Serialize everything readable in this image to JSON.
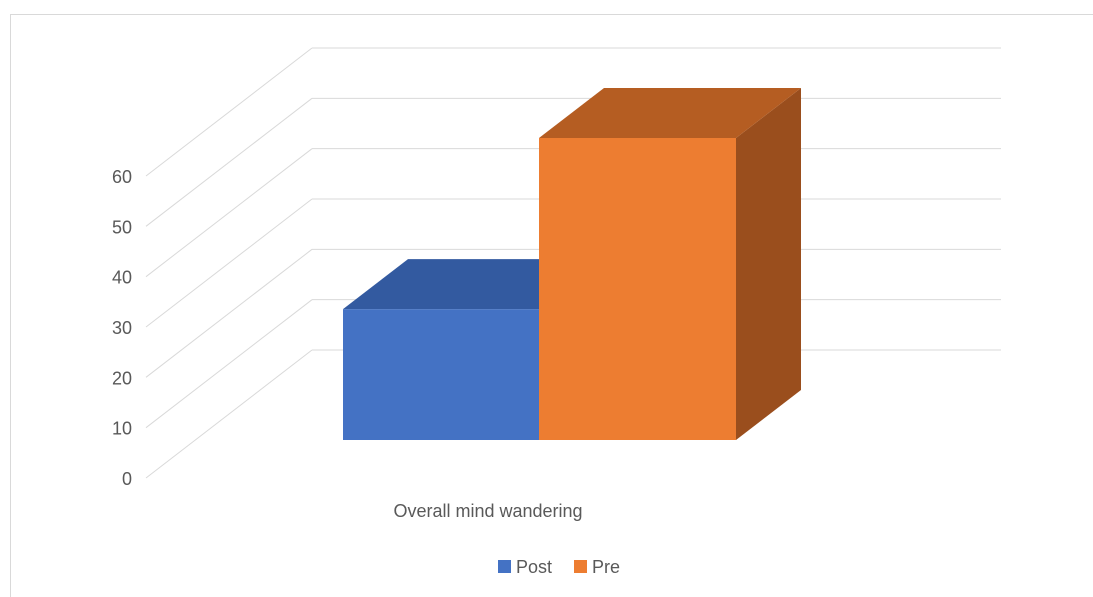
{
  "chart_data": {
    "type": "bar",
    "style": "3d-clustered-column",
    "categories": [
      "Overall mind wandering"
    ],
    "series": [
      {
        "name": "Post",
        "values": [
          26
        ],
        "color": "#4472c4",
        "top_color": "#335aa0",
        "side_color": "#2f5597"
      },
      {
        "name": "Pre",
        "values": [
          60
        ],
        "color": "#ed7d31",
        "top_color": "#b55d22",
        "side_color": "#9a4e1d"
      }
    ],
    "ylim": [
      0,
      60
    ],
    "yticks": [
      0,
      10,
      20,
      30,
      40,
      50,
      60
    ],
    "ytick_labels": [
      "0",
      "10",
      "20",
      "30",
      "40",
      "50",
      "60"
    ],
    "grid": true,
    "legend_position": "bottom",
    "title": "",
    "xlabel": "",
    "ylabel": ""
  },
  "colors": {
    "grid": "#d9d9d9",
    "tick_text": "#595959",
    "frame": "#d9d9d9"
  }
}
